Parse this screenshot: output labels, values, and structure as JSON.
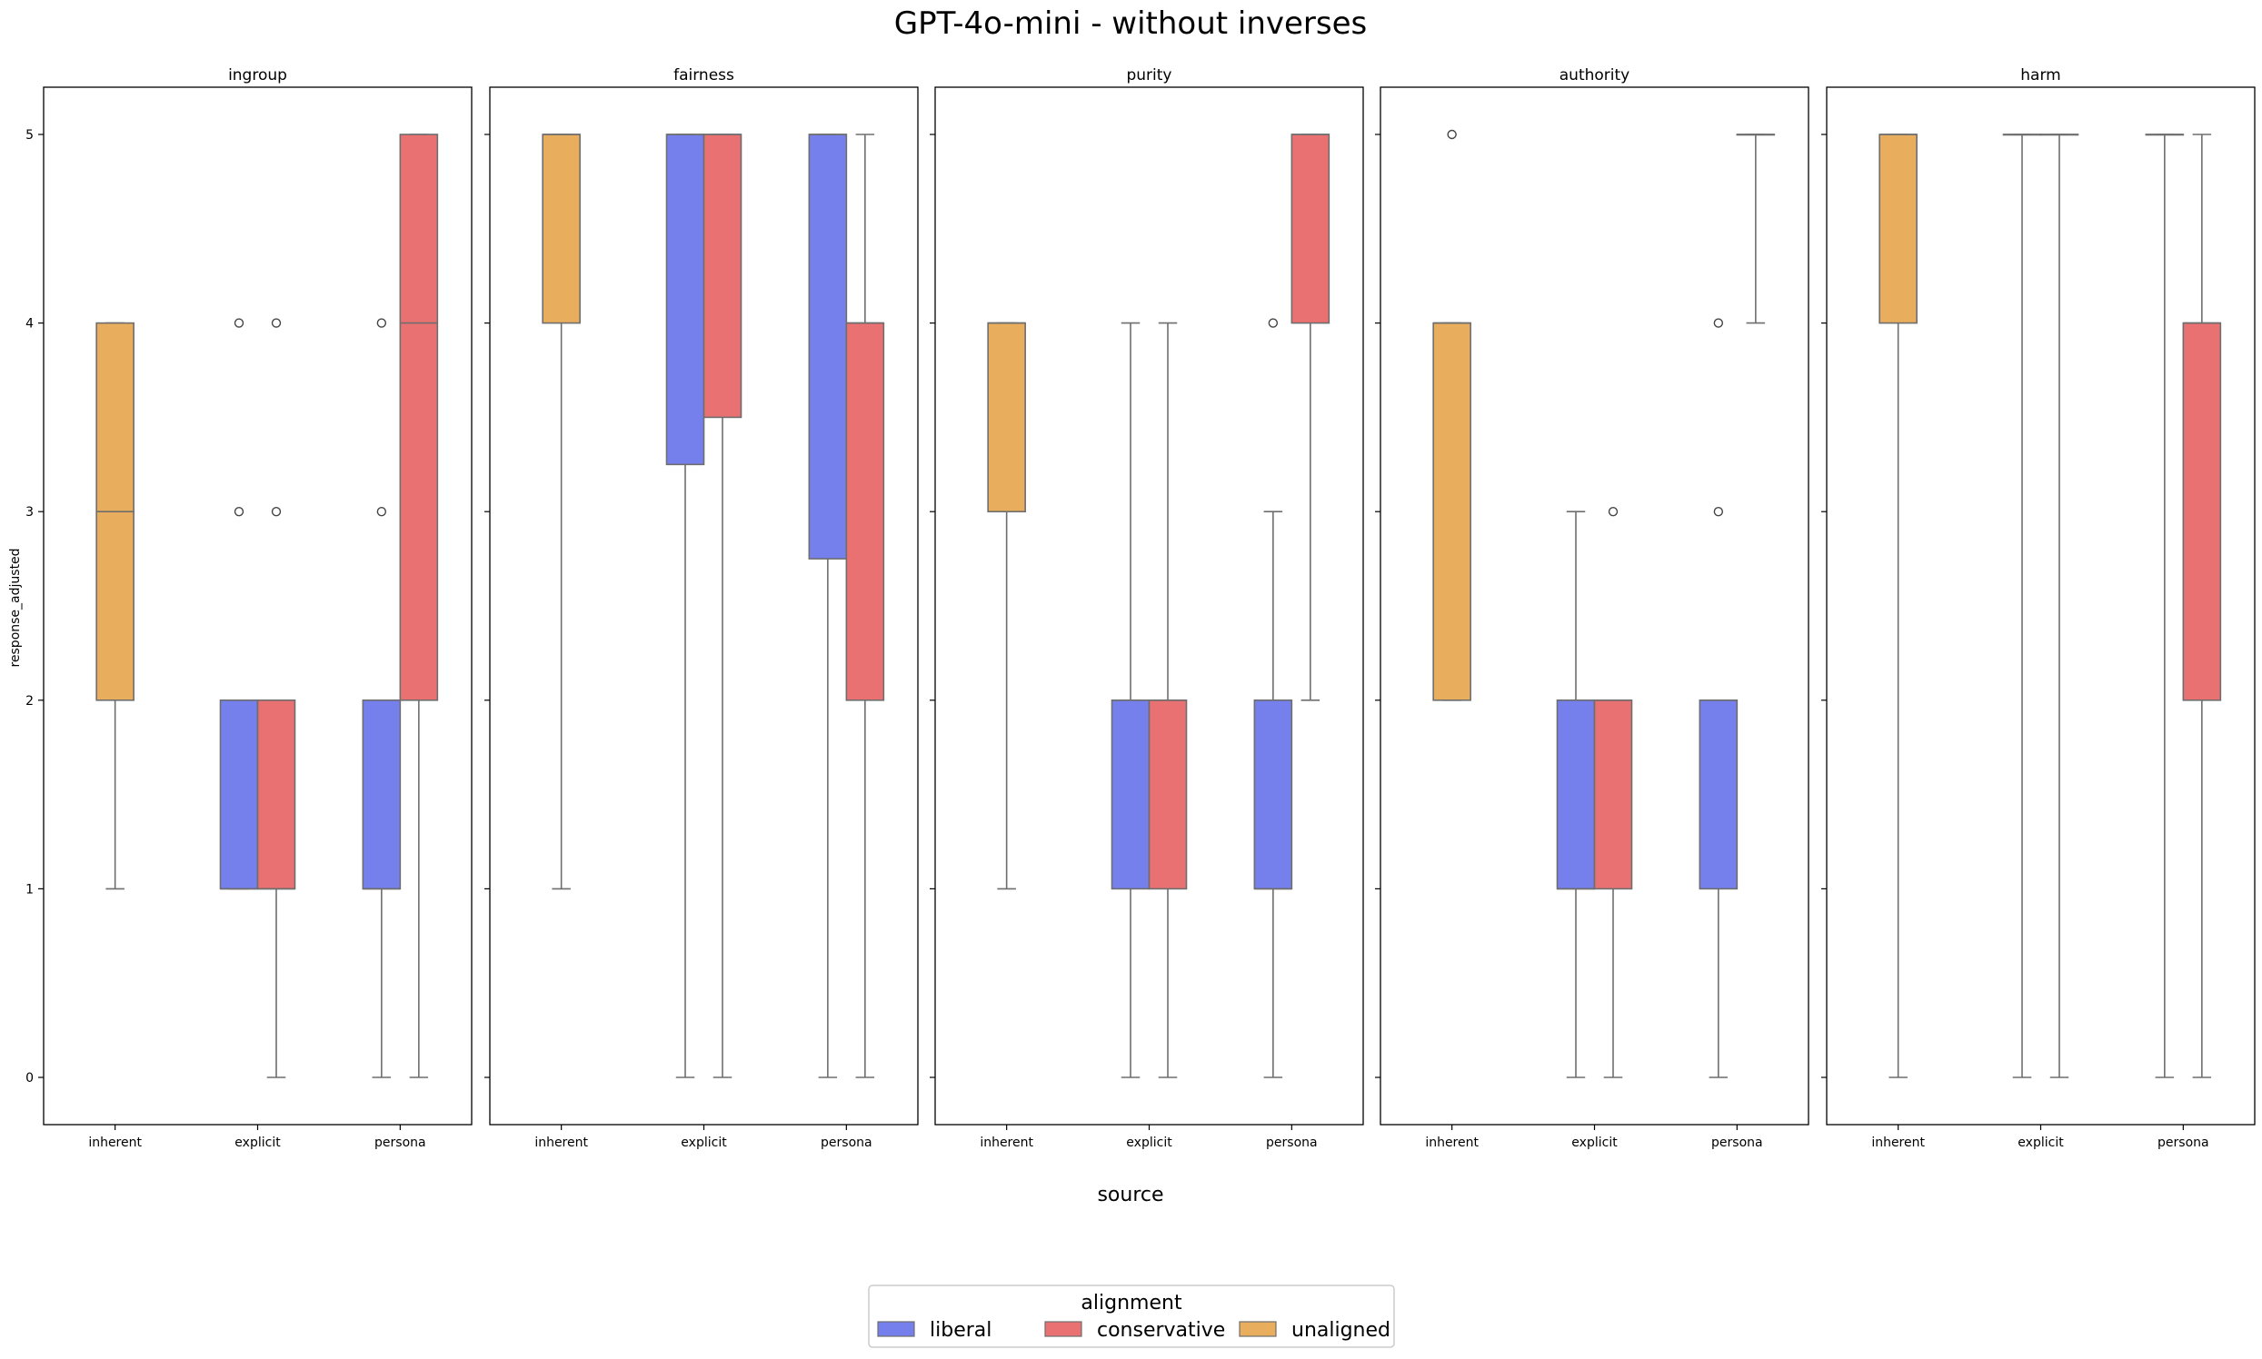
{
  "chart_data": {
    "type": "box",
    "title": "GPT-4o-mini - without inverses",
    "xlabel": "source",
    "ylabel": "response_adjusted",
    "ylim": [
      -0.25,
      5.25
    ],
    "yticks": [
      0,
      1,
      2,
      3,
      4,
      5
    ],
    "categories": [
      "inherent",
      "explicit",
      "persona"
    ],
    "legend": {
      "title": "alignment",
      "position": "bottom-center",
      "entries": [
        {
          "name": "liberal",
          "color": "#7580ec"
        },
        {
          "name": "conservative",
          "color": "#ea7171"
        },
        {
          "name": "unaligned",
          "color": "#e8ae5e"
        }
      ]
    },
    "panels": [
      {
        "title": "ingroup",
        "boxes": [
          {
            "source": "inherent",
            "alignment": "unaligned",
            "q1": 2,
            "median": 3,
            "q3": 4,
            "whislo": 1,
            "whishi": 4,
            "fliers": []
          },
          {
            "source": "explicit",
            "alignment": "liberal",
            "q1": 1,
            "median": 1,
            "q3": 2,
            "whislo": 1,
            "whishi": 2,
            "fliers": [
              3,
              4
            ]
          },
          {
            "source": "explicit",
            "alignment": "conservative",
            "q1": 1,
            "median": 1,
            "q3": 2,
            "whislo": 0,
            "whishi": 2,
            "fliers": [
              3,
              4
            ]
          },
          {
            "source": "persona",
            "alignment": "liberal",
            "q1": 1,
            "median": 1,
            "q3": 2,
            "whislo": 0,
            "whishi": 2,
            "fliers": [
              3,
              4
            ]
          },
          {
            "source": "persona",
            "alignment": "conservative",
            "q1": 2,
            "median": 4,
            "q3": 5,
            "whislo": 0,
            "whishi": 5,
            "fliers": []
          }
        ]
      },
      {
        "title": "fairness",
        "boxes": [
          {
            "source": "inherent",
            "alignment": "unaligned",
            "q1": 4,
            "median": 5,
            "q3": 5,
            "whislo": 1,
            "whishi": 5,
            "fliers": []
          },
          {
            "source": "explicit",
            "alignment": "liberal",
            "q1": 3.25,
            "median": 5,
            "q3": 5,
            "whislo": 0,
            "whishi": 5,
            "fliers": []
          },
          {
            "source": "explicit",
            "alignment": "conservative",
            "q1": 3.5,
            "median": 5,
            "q3": 5,
            "whislo": 0,
            "whishi": 5,
            "fliers": []
          },
          {
            "source": "persona",
            "alignment": "liberal",
            "q1": 2.75,
            "median": 5,
            "q3": 5,
            "whislo": 0,
            "whishi": 5,
            "fliers": []
          },
          {
            "source": "persona",
            "alignment": "conservative",
            "q1": 2,
            "median": 4,
            "q3": 4,
            "whislo": 0,
            "whishi": 5,
            "fliers": []
          }
        ]
      },
      {
        "title": "purity",
        "boxes": [
          {
            "source": "inherent",
            "alignment": "unaligned",
            "q1": 3,
            "median": 4,
            "q3": 4,
            "whislo": 1,
            "whishi": 4,
            "fliers": []
          },
          {
            "source": "explicit",
            "alignment": "liberal",
            "q1": 1,
            "median": 2,
            "q3": 2,
            "whislo": 0,
            "whishi": 4,
            "fliers": []
          },
          {
            "source": "explicit",
            "alignment": "conservative",
            "q1": 1,
            "median": 2,
            "q3": 2,
            "whislo": 0,
            "whishi": 4,
            "fliers": []
          },
          {
            "source": "persona",
            "alignment": "liberal",
            "q1": 1,
            "median": 1,
            "q3": 2,
            "whislo": 0,
            "whishi": 3,
            "fliers": [
              4
            ]
          },
          {
            "source": "persona",
            "alignment": "conservative",
            "q1": 4,
            "median": 5,
            "q3": 5,
            "whislo": 2,
            "whishi": 5,
            "fliers": []
          }
        ]
      },
      {
        "title": "authority",
        "boxes": [
          {
            "source": "inherent",
            "alignment": "unaligned",
            "q1": 2,
            "median": 4,
            "q3": 4,
            "whislo": 2,
            "whishi": 4,
            "fliers": [
              5
            ]
          },
          {
            "source": "explicit",
            "alignment": "liberal",
            "q1": 1,
            "median": 1,
            "q3": 2,
            "whislo": 0,
            "whishi": 3,
            "fliers": []
          },
          {
            "source": "explicit",
            "alignment": "conservative",
            "q1": 1,
            "median": 2,
            "q3": 2,
            "whislo": 0,
            "whishi": 2,
            "fliers": [
              3
            ]
          },
          {
            "source": "persona",
            "alignment": "liberal",
            "q1": 1,
            "median": 2,
            "q3": 2,
            "whislo": 0,
            "whishi": 2,
            "fliers": [
              3,
              4
            ]
          },
          {
            "source": "persona",
            "alignment": "conservative",
            "q1": 5,
            "median": 5,
            "q3": 5,
            "whislo": 4,
            "whishi": 5,
            "fliers": []
          }
        ]
      },
      {
        "title": "harm",
        "boxes": [
          {
            "source": "inherent",
            "alignment": "unaligned",
            "q1": 4,
            "median": 5,
            "q3": 5,
            "whislo": 0,
            "whishi": 5,
            "fliers": []
          },
          {
            "source": "explicit",
            "alignment": "liberal",
            "q1": 5,
            "median": 5,
            "q3": 5,
            "whislo": 0,
            "whishi": 5,
            "fliers": []
          },
          {
            "source": "explicit",
            "alignment": "conservative",
            "q1": 5,
            "median": 5,
            "q3": 5,
            "whislo": 0,
            "whishi": 5,
            "fliers": []
          },
          {
            "source": "persona",
            "alignment": "liberal",
            "q1": 5,
            "median": 5,
            "q3": 5,
            "whislo": 0,
            "whishi": 5,
            "fliers": []
          },
          {
            "source": "persona",
            "alignment": "conservative",
            "q1": 2,
            "median": 4,
            "q3": 4,
            "whislo": 0,
            "whishi": 5,
            "fliers": []
          }
        ]
      }
    ]
  }
}
